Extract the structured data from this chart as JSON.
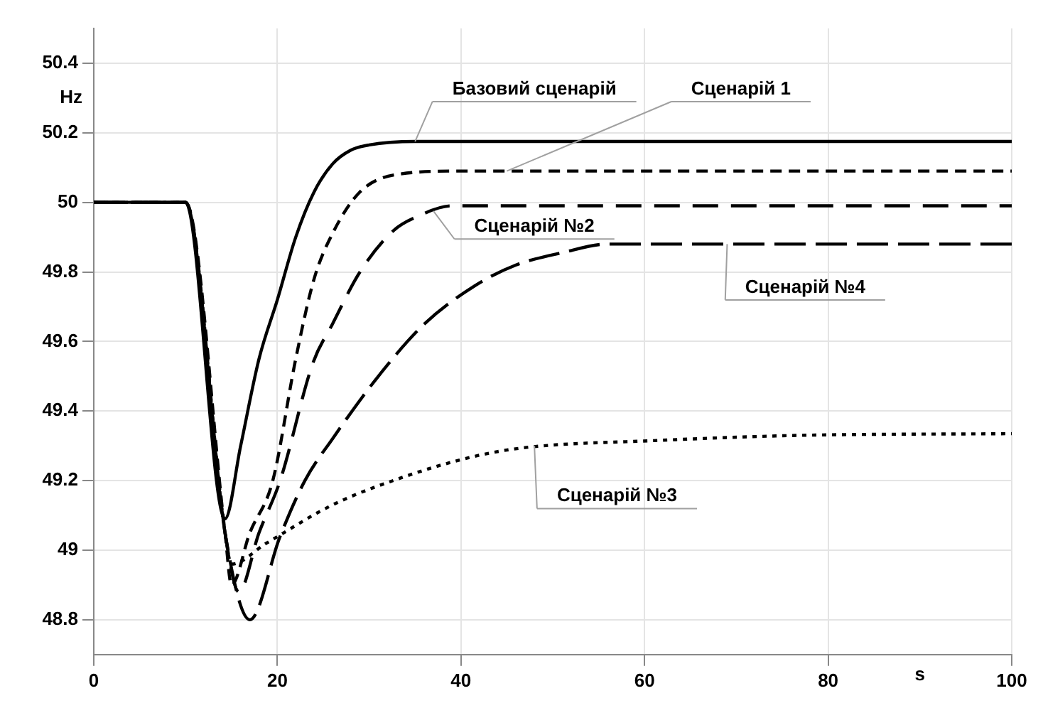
{
  "chart_data": {
    "type": "line",
    "xlabel": "s",
    "ylabel": "Hz",
    "xlim": [
      0,
      100
    ],
    "xticks": [
      0,
      20,
      40,
      60,
      80,
      100
    ],
    "ylim": [
      48.7,
      50.5
    ],
    "yticks": [
      48.8,
      49,
      49.2,
      49.4,
      49.6,
      49.8,
      50,
      50.2,
      50.4
    ],
    "grid": true,
    "legend": false,
    "marker": "none",
    "series": [
      {
        "name": "Базовий сценарій",
        "color": "#000000",
        "line_style": "solid",
        "x": [
          0,
          10,
          14.3,
          16,
          18,
          20,
          22,
          24,
          26,
          28,
          30,
          35,
          100
        ],
        "values": [
          50,
          50,
          49.09,
          49.3,
          49.55,
          49.72,
          49.9,
          50.03,
          50.11,
          50.15,
          50.165,
          50.175,
          50.175
        ]
      },
      {
        "name": "Сценарій 1",
        "color": "#000000",
        "line_style": "dashed",
        "x": [
          0,
          10,
          14.3,
          15,
          17,
          19.5,
          22,
          24,
          26,
          29,
          33,
          40,
          100
        ],
        "values": [
          50,
          50,
          49.05,
          48.9,
          49.05,
          49.2,
          49.55,
          49.78,
          49.91,
          50.03,
          50.08,
          50.09,
          50.09
        ]
      },
      {
        "name": "Сценарій №2",
        "color": "#000000",
        "line_style": "dashed",
        "x": [
          0,
          10,
          14.3,
          15.8,
          18,
          20.3,
          23.9,
          26,
          29,
          32.7,
          35.3,
          39,
          100
        ],
        "values": [
          50,
          50,
          49.05,
          48.88,
          49.05,
          49.2,
          49.54,
          49.65,
          49.8,
          49.92,
          49.96,
          49.99,
          49.99
        ]
      },
      {
        "name": "Сценарій №3",
        "color": "#000000",
        "line_style": "dotted",
        "x": [
          0,
          10,
          14.3,
          15,
          18.8,
          26,
          33.7,
          41.5,
          47,
          61,
          76.7,
          100
        ],
        "values": [
          50,
          50,
          49.05,
          48.96,
          49.02,
          49.13,
          49.21,
          49.27,
          49.295,
          49.315,
          49.33,
          49.335
        ]
      },
      {
        "name": "Сценарій №4",
        "color": "#000000",
        "line_style": "dashed",
        "x": [
          0,
          10,
          14.3,
          17,
          20.3,
          23,
          26,
          31,
          36,
          41.5,
          46,
          51,
          56,
          100
        ],
        "values": [
          50,
          50,
          49.05,
          48.8,
          49.04,
          49.2,
          49.32,
          49.5,
          49.65,
          49.76,
          49.82,
          49.855,
          49.88,
          49.88
        ]
      }
    ]
  }
}
